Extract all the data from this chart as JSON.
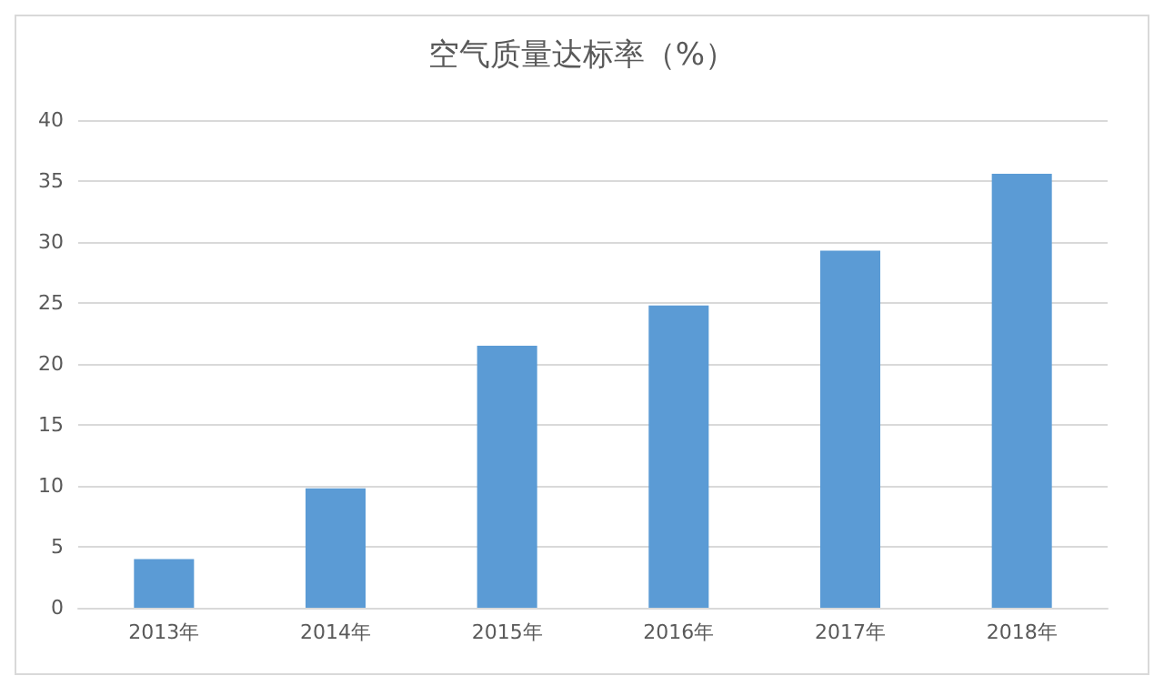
{
  "chart_data": {
    "type": "bar",
    "title": "空气质量达标率（%）",
    "categories": [
      "2013年",
      "2014年",
      "2015年",
      "2016年",
      "2017年",
      "2018年"
    ],
    "values": [
      4,
      9.8,
      21.5,
      24.8,
      29.3,
      35.6
    ],
    "color": "#5b9bd5",
    "ylim": [
      0,
      40
    ],
    "yticks": [
      0,
      5,
      10,
      15,
      20,
      25,
      30,
      35,
      40
    ],
    "grid": "y"
  }
}
